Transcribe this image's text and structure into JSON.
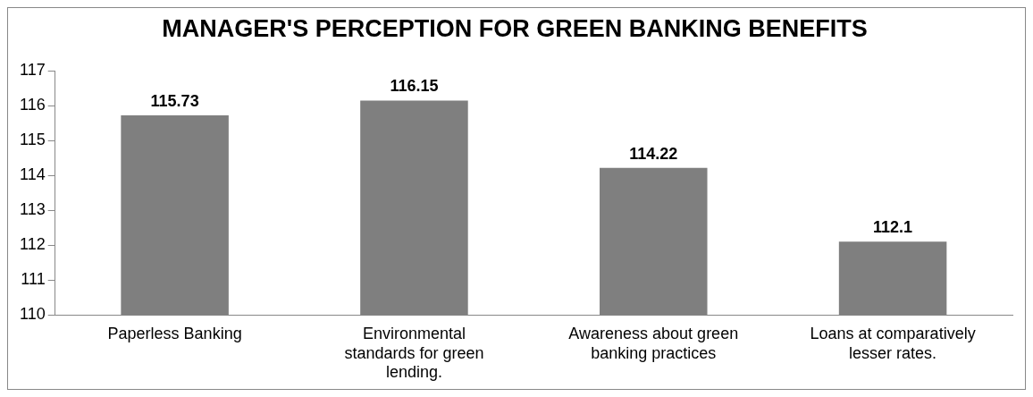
{
  "chart_data": {
    "type": "bar",
    "title": "MANAGER'S PERCEPTION FOR GREEN BANKING BENEFITS",
    "categories": [
      "Paperless Banking",
      "Environmental standards for green lending.",
      "Awareness about green banking practices",
      "Loans at comparatively lesser rates."
    ],
    "values": [
      115.73,
      116.15,
      114.22,
      112.1
    ],
    "color": "#7f7f7f",
    "ylim": [
      110,
      117
    ],
    "yticks": [
      110,
      111,
      112,
      113,
      114,
      115,
      116,
      117
    ],
    "grid": false,
    "legend": false,
    "data_labels": true
  }
}
